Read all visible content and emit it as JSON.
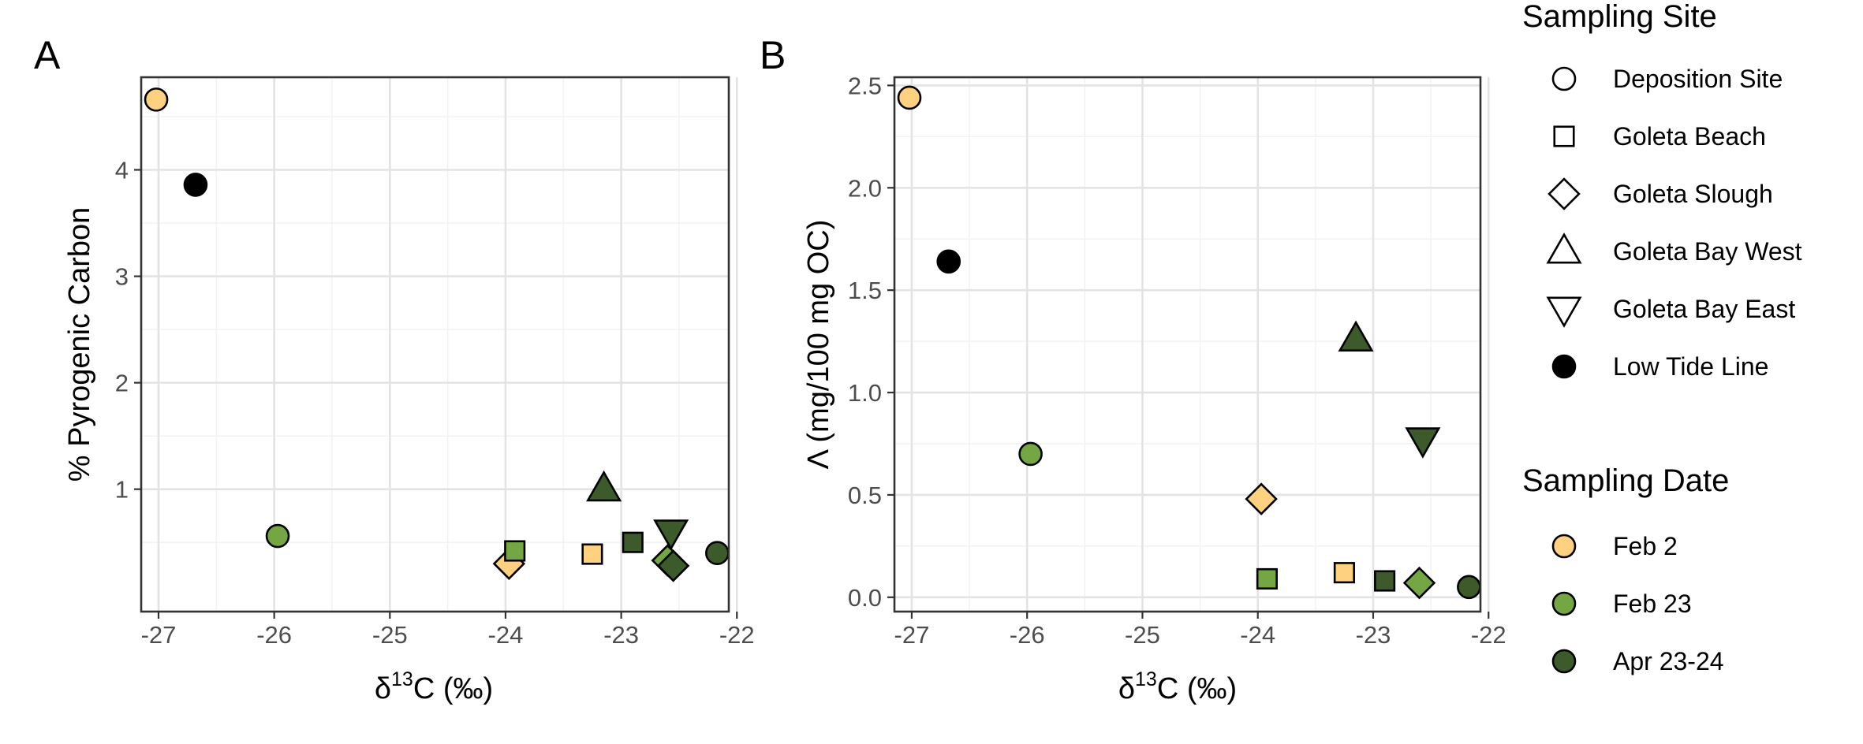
{
  "colors": {
    "Feb 2": "#fdd17f",
    "Feb 23": "#74a744",
    "Apr 23-24": "#3c5a2a",
    "Low Tide Line": "#000000",
    "grid_major": "#e3e3e3",
    "grid_minor": "#f1f1f1",
    "panel_border": "#333333"
  },
  "legends": {
    "site": {
      "title": "Sampling Site",
      "items": [
        {
          "label": "Deposition Site",
          "shape": "circle"
        },
        {
          "label": "Goleta Beach",
          "shape": "square"
        },
        {
          "label": "Goleta Slough",
          "shape": "diamond"
        },
        {
          "label": "Goleta Bay West",
          "shape": "triangle-up"
        },
        {
          "label": "Goleta Bay East",
          "shape": "triangle-down"
        },
        {
          "label": "Low Tide Line",
          "shape": "circle-filled"
        }
      ]
    },
    "date": {
      "title": "Sampling Date",
      "items": [
        {
          "label": "Feb 2",
          "color": "#fdd17f"
        },
        {
          "label": "Feb 23",
          "color": "#74a744"
        },
        {
          "label": "Apr 23-24",
          "color": "#3c5a2a"
        }
      ]
    }
  },
  "chart_data": [
    {
      "panel": "A",
      "type": "scatter",
      "xlabel_parts": {
        "pre": "δ",
        "sup": "13",
        "post": "C (‰)"
      },
      "ylabel": "% Pyrogenic Carbon",
      "xlim": [
        -27.15,
        -22.07
      ],
      "ylim": [
        -0.15,
        4.87
      ],
      "x_ticks": [
        -27,
        -26,
        -25,
        -24,
        -23,
        -22
      ],
      "x_tick_labels": [
        "-27",
        "-26",
        "-25",
        "-24",
        "-23",
        "-22"
      ],
      "y_ticks": [
        1,
        2,
        3,
        4
      ],
      "y_tick_labels": [
        "1",
        "2",
        "3",
        "4"
      ],
      "grid": true,
      "points": [
        {
          "x": -27.02,
          "y": 4.66,
          "site": "Deposition Site",
          "date": "Feb 2",
          "shape": "circle"
        },
        {
          "x": -26.68,
          "y": 3.86,
          "site": "Low Tide Line",
          "date": "",
          "shape": "circle-black"
        },
        {
          "x": -25.97,
          "y": 0.56,
          "site": "Deposition Site",
          "date": "Feb 23",
          "shape": "circle"
        },
        {
          "x": -23.97,
          "y": 0.3,
          "site": "Goleta Slough",
          "date": "Feb 2",
          "shape": "diamond"
        },
        {
          "x": -23.92,
          "y": 0.42,
          "site": "Goleta Beach",
          "date": "Feb 23",
          "shape": "square"
        },
        {
          "x": -23.25,
          "y": 0.39,
          "site": "Goleta Beach",
          "date": "Feb 2",
          "shape": "square"
        },
        {
          "x": -23.15,
          "y": 1.0,
          "site": "Goleta Bay West",
          "date": "Apr 23-24",
          "shape": "triangle-up"
        },
        {
          "x": -22.9,
          "y": 0.5,
          "site": "Goleta Beach",
          "date": "Apr 23-24",
          "shape": "square"
        },
        {
          "x": -22.6,
          "y": 0.33,
          "site": "Goleta Slough",
          "date": "Feb 23",
          "shape": "diamond"
        },
        {
          "x": -22.57,
          "y": 0.6,
          "site": "Goleta Bay East",
          "date": "Apr 23-24",
          "shape": "triangle-down"
        },
        {
          "x": -22.55,
          "y": 0.28,
          "site": "Goleta Slough",
          "date": "Apr 23-24",
          "shape": "diamond"
        },
        {
          "x": -22.17,
          "y": 0.4,
          "site": "Deposition Site",
          "date": "Apr 23-24",
          "shape": "circle"
        }
      ]
    },
    {
      "panel": "B",
      "type": "scatter",
      "xlabel_parts": {
        "pre": "δ",
        "sup": "13",
        "post": "C (‰)"
      },
      "ylabel": "Λ (mg/100 mg OC)",
      "xlim": [
        -27.15,
        -22.07
      ],
      "ylim": [
        -0.07,
        2.54
      ],
      "x_ticks": [
        -27,
        -26,
        -25,
        -24,
        -23,
        -22
      ],
      "x_tick_labels": [
        "-27",
        "-26",
        "-25",
        "-24",
        "-23",
        "-22"
      ],
      "y_ticks": [
        0.0,
        0.5,
        1.0,
        1.5,
        2.0,
        2.5
      ],
      "y_tick_labels": [
        "0.0",
        "0.5",
        "1.0",
        "1.5",
        "2.0",
        "2.5"
      ],
      "grid": true,
      "points": [
        {
          "x": -27.02,
          "y": 2.44,
          "site": "Deposition Site",
          "date": "Feb 2",
          "shape": "circle"
        },
        {
          "x": -26.68,
          "y": 1.64,
          "site": "Low Tide Line",
          "date": "",
          "shape": "circle-black"
        },
        {
          "x": -25.97,
          "y": 0.7,
          "site": "Deposition Site",
          "date": "Feb 23",
          "shape": "circle"
        },
        {
          "x": -23.97,
          "y": 0.48,
          "site": "Goleta Slough",
          "date": "Feb 2",
          "shape": "diamond"
        },
        {
          "x": -23.92,
          "y": 0.09,
          "site": "Goleta Beach",
          "date": "Feb 23",
          "shape": "square"
        },
        {
          "x": -23.25,
          "y": 0.12,
          "site": "Goleta Beach",
          "date": "Feb 2",
          "shape": "square"
        },
        {
          "x": -23.15,
          "y": 1.26,
          "site": "Goleta Bay West",
          "date": "Apr 23-24",
          "shape": "triangle-up"
        },
        {
          "x": -22.9,
          "y": 0.08,
          "site": "Goleta Beach",
          "date": "Apr 23-24",
          "shape": "square"
        },
        {
          "x": -22.57,
          "y": 0.77,
          "site": "Goleta Bay East",
          "date": "Apr 23-24",
          "shape": "triangle-down"
        },
        {
          "x": -22.6,
          "y": 0.07,
          "site": "Goleta Slough",
          "date": "Feb 23",
          "shape": "diamond"
        },
        {
          "x": -22.17,
          "y": 0.05,
          "site": "Deposition Site",
          "date": "Apr 23-24",
          "shape": "circle"
        }
      ]
    }
  ]
}
